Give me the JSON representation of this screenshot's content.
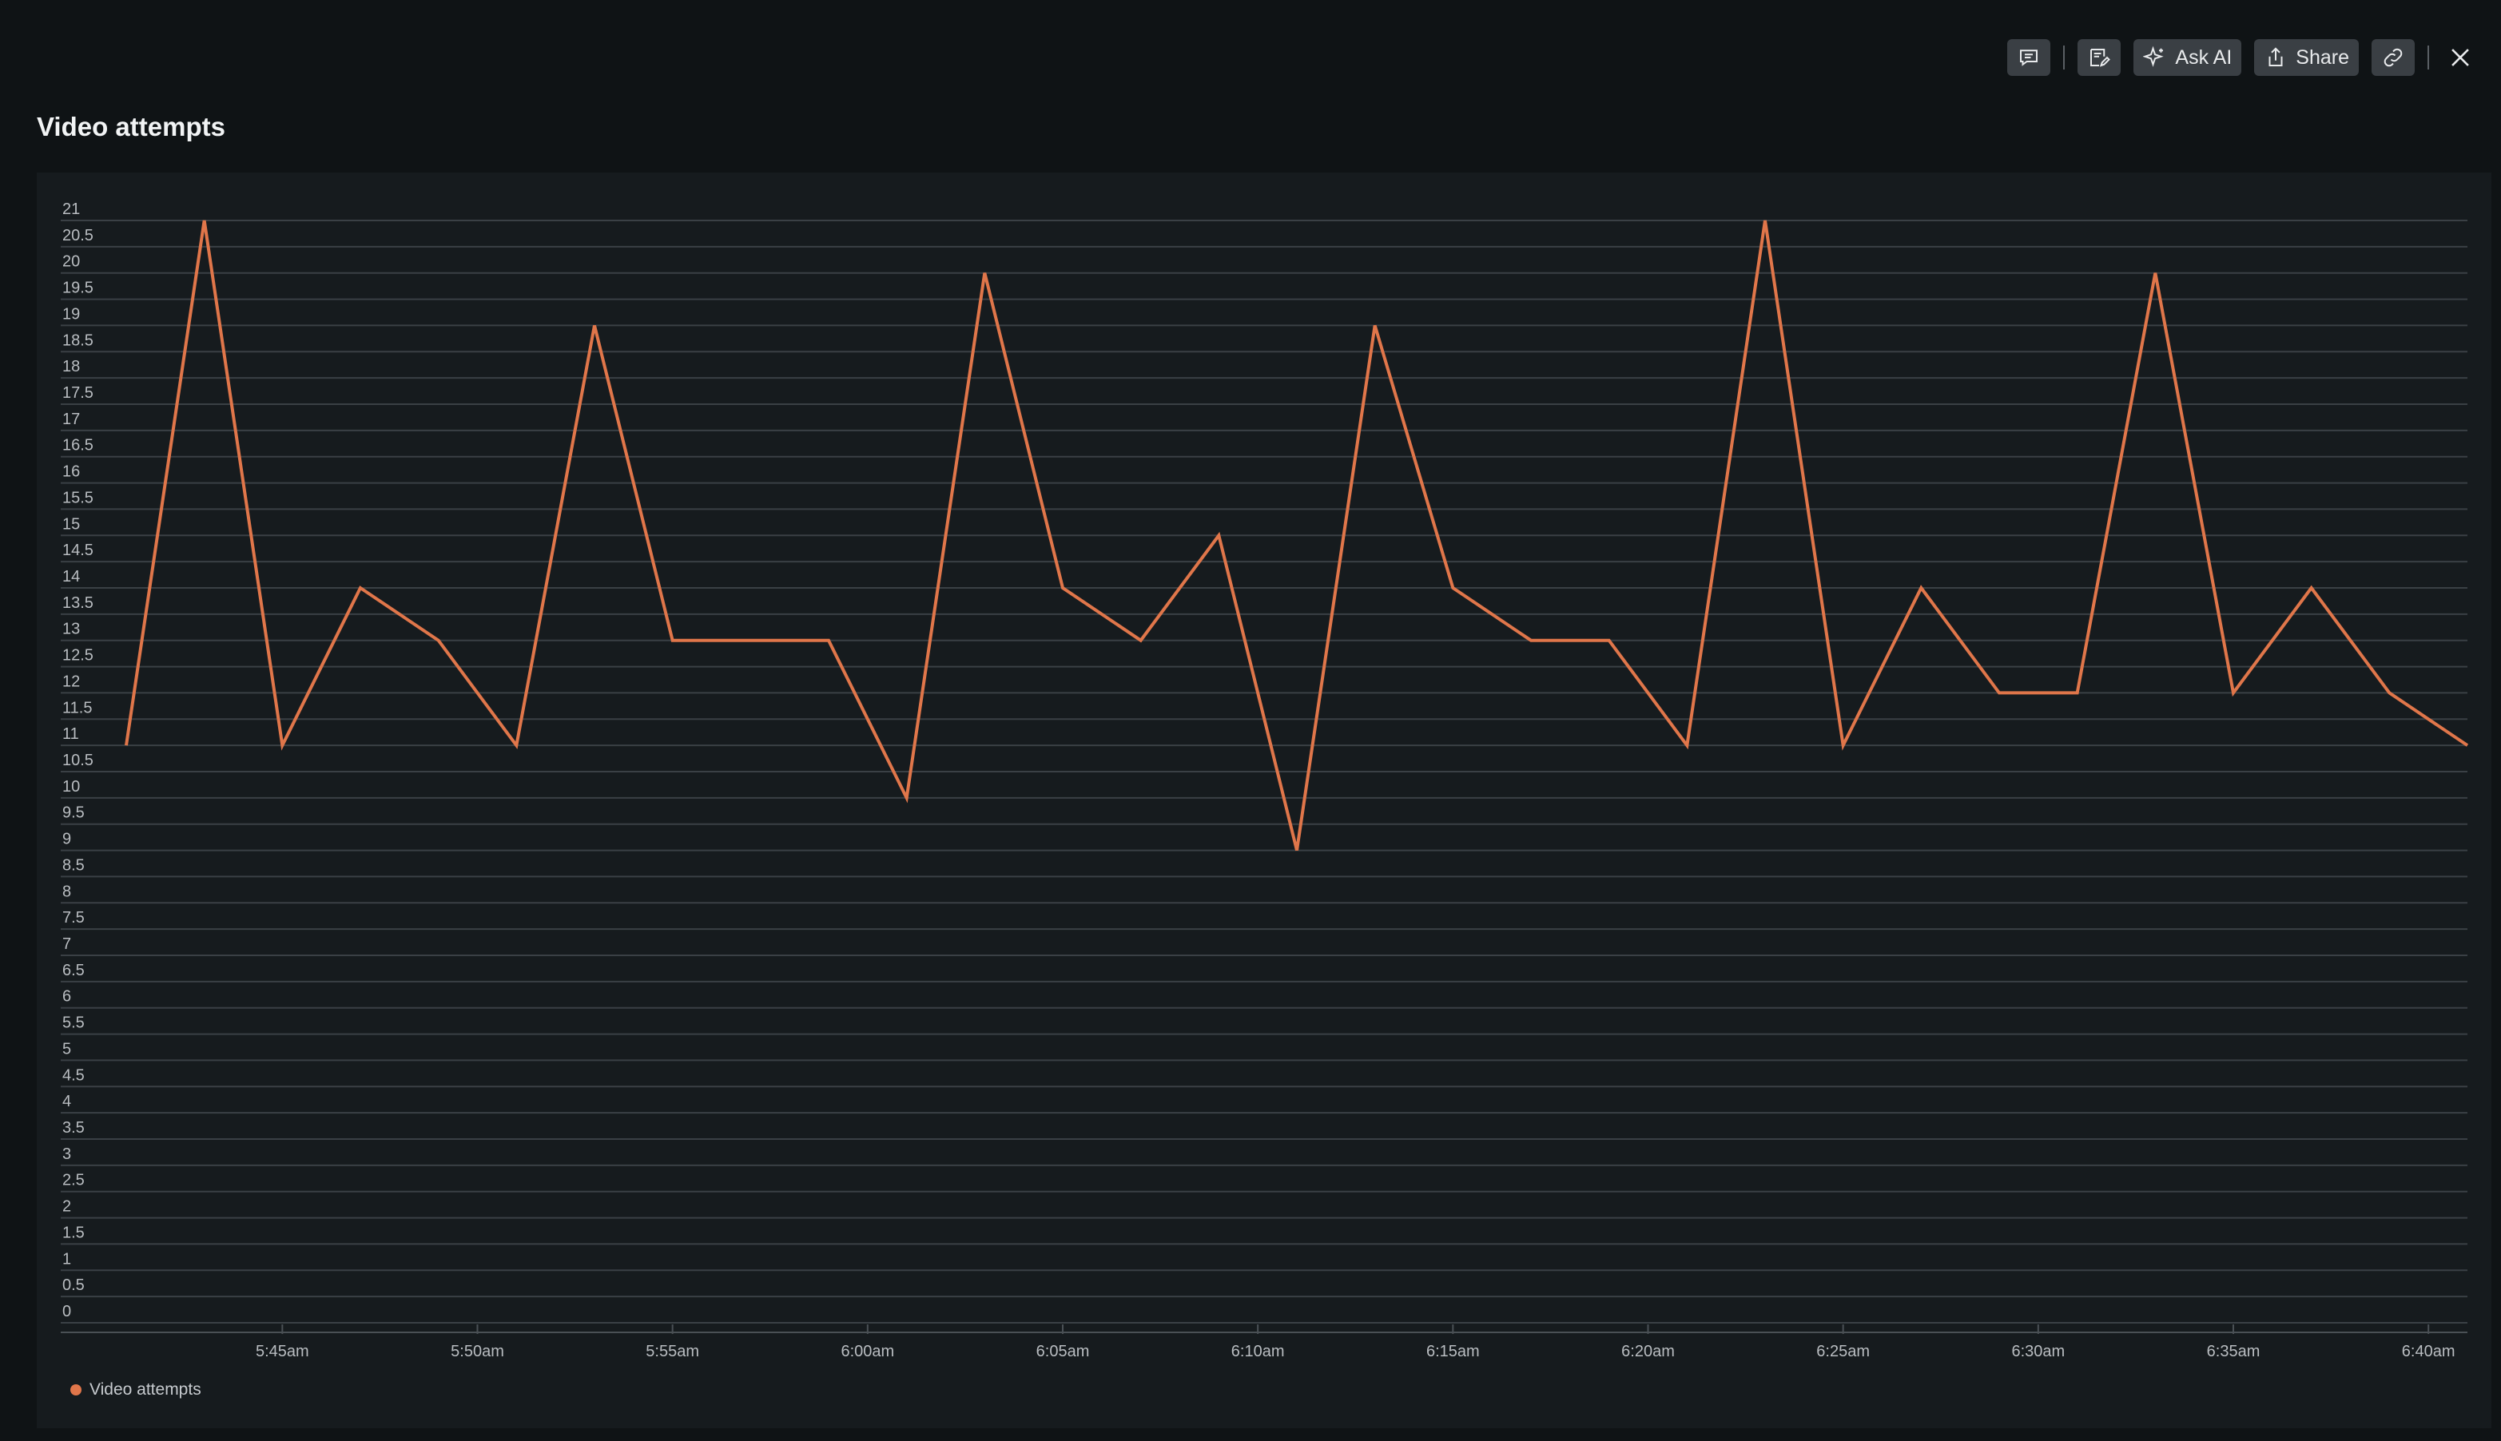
{
  "title": "Video attempts",
  "toolbar": {
    "ask_ai_label": "Ask AI",
    "share_label": "Share"
  },
  "colors": {
    "series": "#e0764a",
    "grid": "#3a4045",
    "background": "#0f1315",
    "panel": "#161b1e"
  },
  "chart_data": {
    "type": "line",
    "title": "Video attempts",
    "ylim": [
      0,
      21
    ],
    "y_ticks": [
      0,
      0.5,
      1,
      1.5,
      2,
      2.5,
      3,
      3.5,
      4,
      4.5,
      5,
      5.5,
      6,
      6.5,
      7,
      7.5,
      8,
      8.5,
      9,
      9.5,
      10,
      10.5,
      11,
      11.5,
      12,
      12.5,
      13,
      13.5,
      14,
      14.5,
      15,
      15.5,
      16,
      16.5,
      17,
      17.5,
      18,
      18.5,
      19,
      19.5,
      20,
      20.5,
      21
    ],
    "x_ticks": [
      "5:45am",
      "5:50am",
      "5:55am",
      "6:00am",
      "6:05am",
      "6:10am",
      "6:15am",
      "6:20am",
      "6:25am",
      "6:30am",
      "6:35am",
      "6:40am"
    ],
    "x": [
      "5:41am",
      "5:43am",
      "5:45am",
      "5:47am",
      "5:49am",
      "5:51am",
      "5:53am",
      "5:55am",
      "5:57am",
      "5:59am",
      "6:01am",
      "6:03am",
      "6:05am",
      "6:07am",
      "6:09am",
      "6:11am",
      "6:13am",
      "6:15am",
      "6:17am",
      "6:19am",
      "6:21am",
      "6:23am",
      "6:25am",
      "6:27am",
      "6:29am",
      "6:31am",
      "6:33am",
      "6:35am",
      "6:37am",
      "6:39am",
      "6:41am"
    ],
    "series": [
      {
        "name": "Video attempts",
        "values": [
          11,
          21,
          11,
          14,
          13,
          11,
          19,
          13,
          13,
          13,
          10,
          20,
          14,
          13,
          15,
          9,
          19,
          14,
          13,
          13,
          11,
          21,
          11,
          14,
          12,
          12,
          20,
          12,
          14,
          12,
          11
        ]
      }
    ],
    "grid": true,
    "legend": "bottom-left"
  }
}
